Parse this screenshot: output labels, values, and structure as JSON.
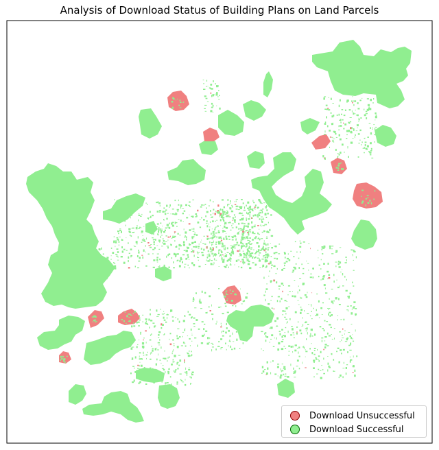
{
  "title": "Analysis of Download Status of Building Plans on Land Parcels",
  "legend": {
    "placement": "lower-right",
    "items": [
      {
        "label": "Download Unsuccessful",
        "color": "#f08080",
        "edge": "#8b0000"
      },
      {
        "label": "Download Successful",
        "color": "#90ee90",
        "edge": "#006400"
      }
    ]
  },
  "colors": {
    "successful": "#90ee90",
    "unsuccessful": "#f08080",
    "frame": "#000000"
  },
  "axes": {
    "visible": false,
    "grid": false
  }
}
